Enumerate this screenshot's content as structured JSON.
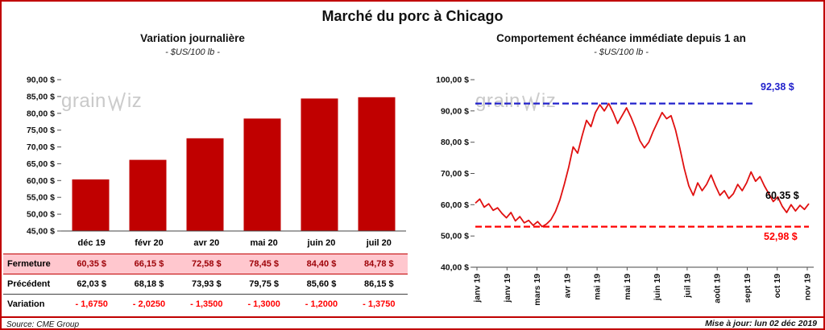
{
  "title": "Marché du porc à Chicago",
  "watermark": {
    "left": "grain",
    "right": "iz"
  },
  "colors": {
    "border_red": "#C00000",
    "bar_red": "#C00000",
    "line_red": "#E01010",
    "ref_blue": "#2222CC",
    "ref_red": "#FF0000",
    "highlight_row_bg": "#FFC7CE",
    "highlight_row_text": "#9C0006",
    "negative_text": "#FF0000"
  },
  "chart_data": [
    {
      "type": "bar",
      "title": "Variation journalière",
      "subtitle": "- $US/100 lb -",
      "categories": [
        "déc 19",
        "févr 20",
        "avr 20",
        "mai 20",
        "juin 20",
        "juil 20"
      ],
      "values": [
        60.35,
        66.15,
        72.58,
        78.45,
        84.4,
        84.78
      ],
      "ylim": [
        45,
        90
      ],
      "ytick_step": 5,
      "ytick_labels": [
        "45,00 $",
        "50,00 $",
        "55,00 $",
        "60,00 $",
        "65,00 $",
        "70,00 $",
        "75,00 $",
        "80,00 $",
        "85,00 $",
        "90,00 $"
      ],
      "bar_color": "#C00000",
      "grid": false,
      "legend": false
    },
    {
      "type": "line",
      "title": "Comportement échéance immédiate depuis 1 an",
      "subtitle": "- $US/100 lb -",
      "x_labels": [
        "janv 19",
        "janv 19",
        "mars 19",
        "avr 19",
        "mai 19",
        "mai 19",
        "juin 19",
        "juil 19",
        "août 19",
        "sept 19",
        "oct 19",
        "nov 19"
      ],
      "ylim": [
        40,
        100
      ],
      "ytick_step": 10,
      "ytick_labels": [
        "40,00 $",
        "50,00 $",
        "60,00 $",
        "70,00 $",
        "80,00 $",
        "90,00 $",
        "100,00 $"
      ],
      "line_color": "#E01010",
      "grid": false,
      "legend": false,
      "values": [
        60.5,
        61.8,
        59.2,
        60.3,
        58.2,
        59.0,
        57.2,
        55.8,
        57.5,
        54.8,
        56.2,
        54.2,
        55.0,
        53.4,
        54.6,
        52.98,
        53.8,
        55.2,
        57.8,
        61.5,
        66.5,
        72.0,
        78.5,
        76.5,
        82.0,
        87.0,
        85.0,
        89.5,
        92.0,
        90.0,
        92.38,
        89.5,
        86.0,
        88.5,
        91.0,
        88.0,
        84.5,
        80.5,
        78.2,
        80.0,
        83.5,
        86.5,
        89.5,
        87.5,
        88.5,
        84.0,
        78.0,
        71.5,
        66.0,
        63.0,
        67.0,
        64.5,
        66.5,
        69.5,
        66.0,
        63.0,
        64.5,
        62.0,
        63.5,
        66.5,
        64.5,
        67.0,
        70.5,
        67.5,
        69.0,
        66.0,
        63.5,
        61.0,
        62.5,
        59.5,
        57.5,
        60.0,
        58.0,
        59.8,
        58.5,
        60.35
      ],
      "reference_lines": [
        {
          "value": 92.38,
          "label": "92,38 $",
          "color": "#2222CC",
          "style": "dashed"
        },
        {
          "value": 52.98,
          "label": "52,98 $",
          "color": "#FF0000",
          "style": "dashed"
        }
      ],
      "last_label": {
        "value": 60.35,
        "label": "60,35 $"
      }
    }
  ],
  "table": {
    "columns": [
      "déc 19",
      "févr 20",
      "avr 20",
      "mai 20",
      "juin 20",
      "juil 20"
    ],
    "rows": [
      {
        "label": "Fermeture",
        "values": [
          "60,35 $",
          "66,15 $",
          "72,58 $",
          "78,45 $",
          "84,40 $",
          "84,78 $"
        ],
        "highlight": true
      },
      {
        "label": "Précédent",
        "values": [
          "62,03 $",
          "68,18 $",
          "73,93 $",
          "79,75 $",
          "85,60 $",
          "86,15 $"
        ]
      },
      {
        "label": "Variation",
        "values": [
          "- 1,6750",
          "- 2,0250",
          "- 1,3500",
          "- 1,3000",
          "- 1,2000",
          "- 1,3750"
        ],
        "negative": true
      }
    ]
  },
  "footer": {
    "source": "Source: CME Group",
    "updated": "Mise à jour: lun 02 déc 2019"
  }
}
